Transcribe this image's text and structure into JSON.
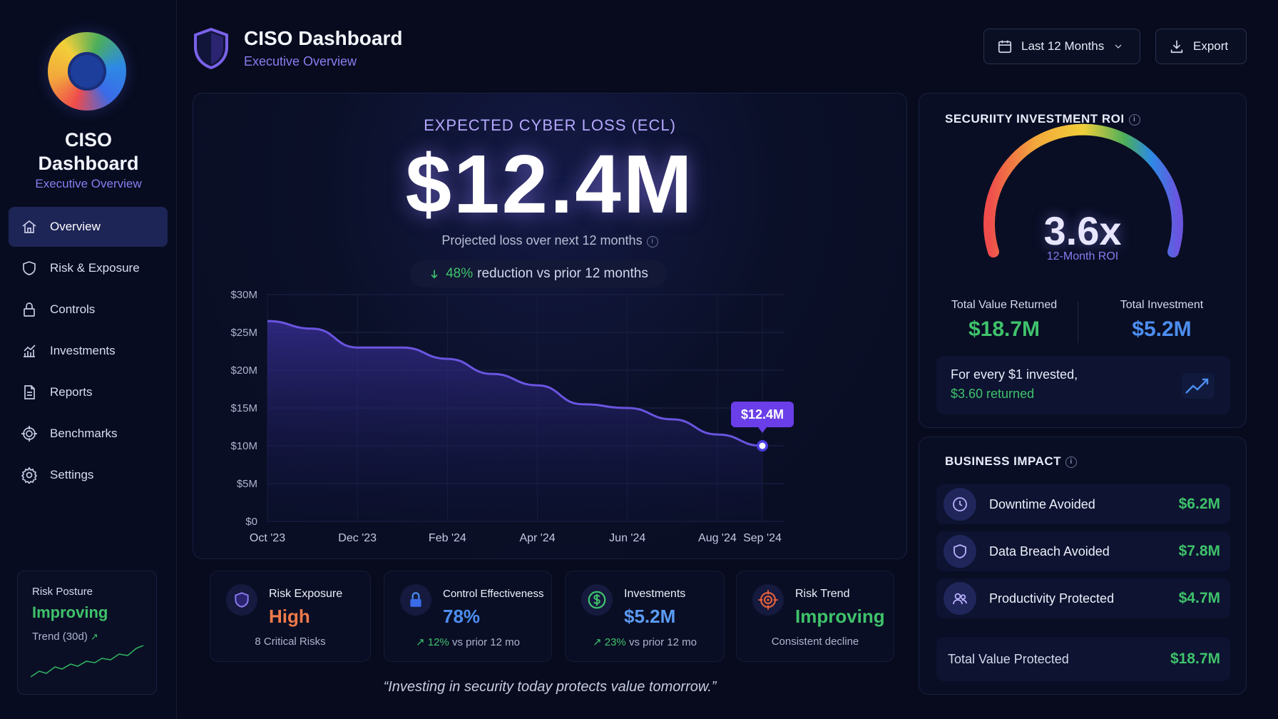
{
  "app": {
    "title": "CISO Dashboard",
    "subtitle": "Executive Overview"
  },
  "sidebar": {
    "title_line1": "CISO",
    "title_line2": "Dashboard",
    "subtitle": "Executive Overview",
    "items": [
      {
        "label": "Overview",
        "icon": "home-icon",
        "active": true
      },
      {
        "label": "Risk & Exposure",
        "icon": "shield-icon"
      },
      {
        "label": "Controls",
        "icon": "lock-icon"
      },
      {
        "label": "Investments",
        "icon": "bar-chart-icon"
      },
      {
        "label": "Reports",
        "icon": "document-icon"
      },
      {
        "label": "Benchmarks",
        "icon": "target-icon"
      },
      {
        "label": "Settings",
        "icon": "gear-icon"
      }
    ],
    "posture": {
      "label": "Risk Posture",
      "value": "Improving",
      "trend_label": "Trend (30d)",
      "trend_arrow": "↗"
    }
  },
  "header": {
    "title": "CISO Dashboard",
    "subtitle": "Executive Overview",
    "period_button": "Last 12 Months",
    "export_button": "Export"
  },
  "ecl": {
    "label": "EXPECTED CYBER LOSS (ECL)",
    "value": "$12.4M",
    "projection": "Projected loss over next 12 months",
    "reduction_value": "48%",
    "reduction_text": "reduction vs prior 12 months",
    "tooltip": "$12.4M"
  },
  "chart_data": {
    "type": "area",
    "x": [
      "Oct '23",
      "Nov '23",
      "Dec '23",
      "Jan '24",
      "Feb '24",
      "Mar '24",
      "Apr '24",
      "May '24",
      "Jun '24",
      "Jul '24",
      "Aug '24",
      "Sep '24"
    ],
    "x_tick_labels": [
      "Oct '23",
      "Dec '23",
      "Feb '24",
      "Apr '24",
      "Jun '24",
      "Aug '24",
      "Sep '24"
    ],
    "series": [
      {
        "name": "Expected Cyber Loss (ECL)",
        "values": [
          26.5,
          25.5,
          23,
          23,
          21.5,
          19.5,
          18,
          15.5,
          15,
          13.5,
          11.5,
          10
        ]
      }
    ],
    "y_tick_labels": [
      "$0",
      "$5M",
      "$10M",
      "$15M",
      "$20M",
      "$25M",
      "$30M"
    ],
    "ylim": [
      0,
      30
    ],
    "legend": "bottom-center",
    "colors": {
      "line": "#6a55e0",
      "fill": "#2a2478"
    }
  },
  "roi": {
    "title": "SECURIITY INVESTMENT ROI",
    "value": "3.6x",
    "sub": "12-Month ROI",
    "returned_label": "Total Value Returned",
    "returned_value": "$18.7M",
    "investment_label": "Total Investment",
    "investment_value": "$5.2M",
    "note_line1": "For every $1 invested,",
    "note_line2": "$3.60 returned"
  },
  "business": {
    "title": "BUSINESS IMPACT",
    "rows": [
      {
        "label": "Downtime Avoided",
        "value": "$6.2M",
        "icon": "clock-icon"
      },
      {
        "label": "Data Breach Avoided",
        "value": "$7.8M",
        "icon": "shield-icon"
      },
      {
        "label": "Productivity Protected",
        "value": "$4.7M",
        "icon": "users-icon"
      }
    ],
    "total_label": "Total Value Protected",
    "total_value": "$18.7M"
  },
  "kpis": [
    {
      "title": "Risk Exposure",
      "value": "High",
      "footer": "8 Critical Risks",
      "color": "#f07a4a",
      "icon": "shield-icon"
    },
    {
      "title": "Control Effectiveness",
      "value": "78%",
      "delta": "12%",
      "footer": "vs prior 12 mo",
      "color": "#4d8ef0",
      "icon": "lock-icon"
    },
    {
      "title": "Investments",
      "value": "$5.2M",
      "delta": "23%",
      "footer": "vs prior 12 mo",
      "color": "#5b9cf5",
      "icon": "dollar-icon"
    },
    {
      "title": "Risk Trend",
      "value": "Improving",
      "footer": "Consistent decline",
      "color": "#3fc26b",
      "icon": "target-icon"
    }
  ],
  "quote": "“Investing in security today protects value tomorrow.”",
  "colors": {
    "accent": "#8a7cf0",
    "positive": "#3fc26b",
    "bg": "#070b1d"
  }
}
